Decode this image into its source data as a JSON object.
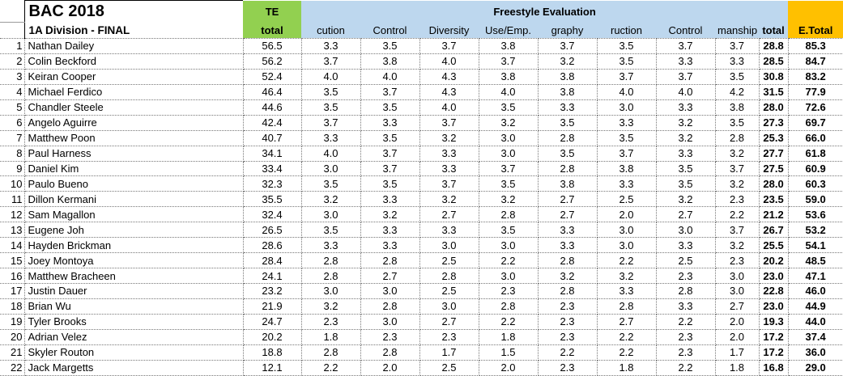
{
  "header": {
    "title": "BAC 2018",
    "subtitle": "1A Division - FINAL",
    "te_line1": "TE",
    "te_line2": "total",
    "group_label": "Freestyle Evaluation",
    "judge_columns": [
      "cution",
      "Control",
      "Diversity",
      "Use/Emp.",
      "graphy",
      "ruction",
      "Control",
      "manship"
    ],
    "total_label": "total",
    "etotal_label": "E.Total"
  },
  "colors": {
    "te_green": "#92D050",
    "eval_blue": "#BDD7EE",
    "etotal_orange": "#FFC000"
  },
  "rows": [
    {
      "rank": "1",
      "name": "Nathan Dailey",
      "te_total": "56.5",
      "scores": [
        "3.3",
        "3.5",
        "3.7",
        "3.8",
        "3.7",
        "3.5",
        "3.7",
        "3.7"
      ],
      "total": "28.8",
      "e_total": "85.3"
    },
    {
      "rank": "2",
      "name": "Colin Beckford",
      "te_total": "56.2",
      "scores": [
        "3.7",
        "3.8",
        "4.0",
        "3.7",
        "3.2",
        "3.5",
        "3.3",
        "3.3"
      ],
      "total": "28.5",
      "e_total": "84.7"
    },
    {
      "rank": "3",
      "name": "Keiran Cooper",
      "te_total": "52.4",
      "scores": [
        "4.0",
        "4.0",
        "4.3",
        "3.8",
        "3.8",
        "3.7",
        "3.7",
        "3.5"
      ],
      "total": "30.8",
      "e_total": "83.2"
    },
    {
      "rank": "4",
      "name": "Michael Ferdico",
      "te_total": "46.4",
      "scores": [
        "3.5",
        "3.7",
        "4.3",
        "4.0",
        "3.8",
        "4.0",
        "4.0",
        "4.2"
      ],
      "total": "31.5",
      "e_total": "77.9"
    },
    {
      "rank": "5",
      "name": "Chandler Steele",
      "te_total": "44.6",
      "scores": [
        "3.5",
        "3.5",
        "4.0",
        "3.5",
        "3.3",
        "3.0",
        "3.3",
        "3.8"
      ],
      "total": "28.0",
      "e_total": "72.6"
    },
    {
      "rank": "6",
      "name": "Angelo Aguirre",
      "te_total": "42.4",
      "scores": [
        "3.7",
        "3.3",
        "3.7",
        "3.2",
        "3.5",
        "3.3",
        "3.2",
        "3.5"
      ],
      "total": "27.3",
      "e_total": "69.7"
    },
    {
      "rank": "7",
      "name": "Matthew Poon",
      "te_total": "40.7",
      "scores": [
        "3.3",
        "3.5",
        "3.2",
        "3.0",
        "2.8",
        "3.5",
        "3.2",
        "2.8"
      ],
      "total": "25.3",
      "e_total": "66.0"
    },
    {
      "rank": "8",
      "name": "Paul Harness",
      "te_total": "34.1",
      "scores": [
        "4.0",
        "3.7",
        "3.3",
        "3.0",
        "3.5",
        "3.7",
        "3.3",
        "3.2"
      ],
      "total": "27.7",
      "e_total": "61.8"
    },
    {
      "rank": "9",
      "name": "Daniel Kim",
      "te_total": "33.4",
      "scores": [
        "3.0",
        "3.7",
        "3.3",
        "3.7",
        "2.8",
        "3.8",
        "3.5",
        "3.7"
      ],
      "total": "27.5",
      "e_total": "60.9"
    },
    {
      "rank": "10",
      "name": "Paulo Bueno",
      "te_total": "32.3",
      "scores": [
        "3.5",
        "3.5",
        "3.7",
        "3.5",
        "3.8",
        "3.3",
        "3.5",
        "3.2"
      ],
      "total": "28.0",
      "e_total": "60.3"
    },
    {
      "rank": "11",
      "name": "Dillon Kermani",
      "te_total": "35.5",
      "scores": [
        "3.2",
        "3.3",
        "3.2",
        "3.2",
        "2.7",
        "2.5",
        "3.2",
        "2.3"
      ],
      "total": "23.5",
      "e_total": "59.0"
    },
    {
      "rank": "12",
      "name": "Sam Magallon",
      "te_total": "32.4",
      "scores": [
        "3.0",
        "3.2",
        "2.7",
        "2.8",
        "2.7",
        "2.0",
        "2.7",
        "2.2"
      ],
      "total": "21.2",
      "e_total": "53.6"
    },
    {
      "rank": "13",
      "name": "Eugene Joh",
      "te_total": "26.5",
      "scores": [
        "3.5",
        "3.3",
        "3.3",
        "3.5",
        "3.3",
        "3.0",
        "3.0",
        "3.7"
      ],
      "total": "26.7",
      "e_total": "53.2"
    },
    {
      "rank": "14",
      "name": "Hayden Brickman",
      "te_total": "28.6",
      "scores": [
        "3.3",
        "3.3",
        "3.0",
        "3.0",
        "3.3",
        "3.0",
        "3.3",
        "3.2"
      ],
      "total": "25.5",
      "e_total": "54.1"
    },
    {
      "rank": "15",
      "name": "Joey Montoya",
      "te_total": "28.4",
      "scores": [
        "2.8",
        "2.8",
        "2.5",
        "2.2",
        "2.8",
        "2.2",
        "2.5",
        "2.3"
      ],
      "total": "20.2",
      "e_total": "48.5"
    },
    {
      "rank": "16",
      "name": "Matthew Bracheen",
      "te_total": "24.1",
      "scores": [
        "2.8",
        "2.7",
        "2.8",
        "3.0",
        "3.2",
        "3.2",
        "2.3",
        "3.0"
      ],
      "total": "23.0",
      "e_total": "47.1"
    },
    {
      "rank": "17",
      "name": "Justin Dauer",
      "te_total": "23.2",
      "scores": [
        "3.0",
        "3.0",
        "2.5",
        "2.3",
        "2.8",
        "3.3",
        "2.8",
        "3.0"
      ],
      "total": "22.8",
      "e_total": "46.0"
    },
    {
      "rank": "18",
      "name": "Brian Wu",
      "te_total": "21.9",
      "scores": [
        "3.2",
        "2.8",
        "3.0",
        "2.8",
        "2.3",
        "2.8",
        "3.3",
        "2.7"
      ],
      "total": "23.0",
      "e_total": "44.9"
    },
    {
      "rank": "19",
      "name": "Tyler Brooks",
      "te_total": "24.7",
      "scores": [
        "2.3",
        "3.0",
        "2.7",
        "2.2",
        "2.3",
        "2.7",
        "2.2",
        "2.0"
      ],
      "total": "19.3",
      "e_total": "44.0"
    },
    {
      "rank": "20",
      "name": "Adrian Velez",
      "te_total": "20.2",
      "scores": [
        "1.8",
        "2.3",
        "2.3",
        "1.8",
        "2.3",
        "2.2",
        "2.3",
        "2.0"
      ],
      "total": "17.2",
      "e_total": "37.4"
    },
    {
      "rank": "21",
      "name": "Skyler Routon",
      "te_total": "18.8",
      "scores": [
        "2.8",
        "2.8",
        "1.7",
        "1.5",
        "2.2",
        "2.2",
        "2.3",
        "1.7"
      ],
      "total": "17.2",
      "e_total": "36.0"
    },
    {
      "rank": "22",
      "name": "Jack Margetts",
      "te_total": "12.1",
      "scores": [
        "2.2",
        "2.0",
        "2.5",
        "2.0",
        "2.3",
        "1.8",
        "2.2",
        "1.8"
      ],
      "total": "16.8",
      "e_total": "29.0"
    }
  ]
}
